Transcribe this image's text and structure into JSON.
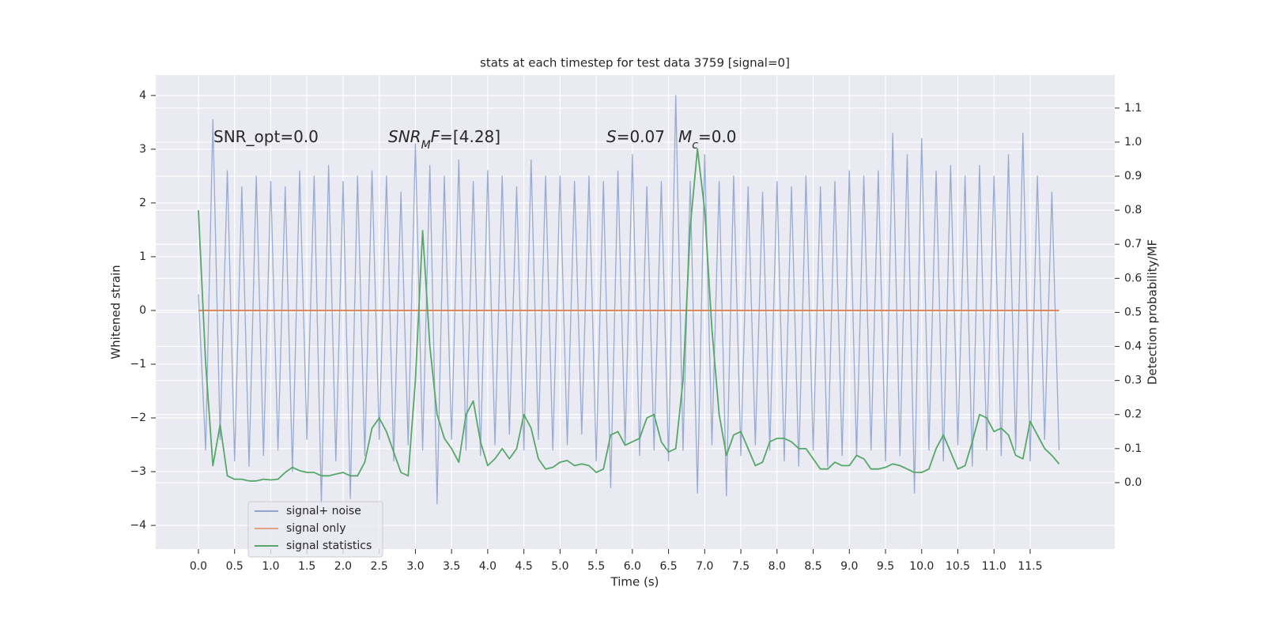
{
  "chart_data": {
    "type": "line",
    "title": "stats at each timestep for test data 3759 [signal=0]",
    "xlabel": "Time (s)",
    "ylabel": "Whitened strain",
    "y2label": "Detection probability/MF",
    "annotations": [
      [
        "SNR_opt=0.0"
      ],
      [
        "SNR",
        "M",
        "F",
        "=[4.28]"
      ],
      [
        "S",
        "=0.07"
      ],
      [
        "M",
        "c",
        "=0.0"
      ]
    ],
    "x": [
      0.0,
      0.1,
      0.2,
      0.3,
      0.4,
      0.5,
      0.6,
      0.7,
      0.8,
      0.9,
      1.0,
      1.1,
      1.2,
      1.3,
      1.4,
      1.5,
      1.6,
      1.7,
      1.8,
      1.9,
      2.0,
      2.1,
      2.2,
      2.3,
      2.4,
      2.5,
      2.6,
      2.7,
      2.8,
      2.9,
      3.0,
      3.1,
      3.2,
      3.3,
      3.4,
      3.5,
      3.6,
      3.7,
      3.8,
      3.9,
      4.0,
      4.1,
      4.2,
      4.3,
      4.4,
      4.5,
      4.6,
      4.7,
      4.8,
      4.9,
      5.0,
      5.1,
      5.2,
      5.3,
      5.4,
      5.5,
      5.6,
      5.7,
      5.8,
      5.9,
      6.0,
      6.1,
      6.2,
      6.3,
      6.4,
      6.5,
      6.6,
      6.7,
      6.8,
      6.9,
      7.0,
      7.1,
      7.2,
      7.3,
      7.4,
      7.5,
      7.6,
      7.7,
      7.8,
      7.9,
      8.0,
      8.1,
      8.2,
      8.3,
      8.4,
      8.5,
      8.6,
      8.7,
      8.8,
      8.9,
      9.0,
      9.1,
      9.2,
      9.3,
      9.4,
      9.5,
      9.6,
      9.7,
      9.8,
      9.9,
      10.0,
      10.1,
      10.2,
      10.3,
      10.4,
      10.5,
      10.6,
      10.7,
      10.8,
      10.9,
      11.0,
      11.1,
      11.2,
      11.3,
      11.4,
      11.5,
      11.6,
      11.7,
      11.8,
      11.9
    ],
    "series": [
      {
        "name": "signal+ noise",
        "color": "#8fa3cc",
        "values": [
          0.3,
          -2.6,
          3.55,
          -2.4,
          2.6,
          -2.8,
          2.3,
          -2.9,
          2.5,
          -2.7,
          2.4,
          -2.6,
          2.3,
          -3.0,
          2.6,
          -2.4,
          2.5,
          -3.6,
          2.7,
          -2.8,
          2.4,
          -3.5,
          2.5,
          -2.7,
          2.6,
          -2.4,
          2.5,
          -2.8,
          2.2,
          -2.5,
          3.1,
          -2.6,
          2.7,
          -3.6,
          2.5,
          -2.4,
          2.8,
          -2.6,
          2.4,
          -2.7,
          2.6,
          -2.5,
          2.5,
          -2.3,
          2.3,
          -2.6,
          2.8,
          -2.4,
          2.5,
          -2.6,
          2.5,
          -2.5,
          2.4,
          -2.3,
          2.5,
          -2.8,
          2.4,
          -3.3,
          2.6,
          -2.5,
          2.9,
          -2.7,
          2.3,
          -2.6,
          2.4,
          -2.8,
          4.0,
          -2.6,
          2.4,
          -3.4,
          2.9,
          -2.5,
          2.4,
          -3.45,
          2.5,
          -2.7,
          2.3,
          -2.5,
          2.2,
          -2.6,
          2.4,
          -2.8,
          2.3,
          -2.9,
          2.5,
          -2.6,
          2.3,
          -2.9,
          2.4,
          -2.7,
          2.6,
          -2.7,
          2.5,
          -2.6,
          2.6,
          -2.8,
          3.3,
          -2.7,
          2.9,
          -3.4,
          3.2,
          -2.6,
          2.6,
          -2.8,
          2.7,
          -2.5,
          2.5,
          -2.9,
          2.7,
          -2.6,
          2.5,
          -2.7,
          2.9,
          -2.6,
          3.3,
          -2.8,
          2.5,
          -2.4,
          2.2,
          -2.6
        ]
      },
      {
        "name": "signal only",
        "color": "#dd8452",
        "values": [
          0,
          0,
          0,
          0,
          0,
          0,
          0,
          0,
          0,
          0,
          0,
          0,
          0,
          0,
          0,
          0,
          0,
          0,
          0,
          0,
          0,
          0,
          0,
          0,
          0,
          0,
          0,
          0,
          0,
          0,
          0,
          0,
          0,
          0,
          0,
          0,
          0,
          0,
          0,
          0,
          0,
          0,
          0,
          0,
          0,
          0,
          0,
          0,
          0,
          0,
          0,
          0,
          0,
          0,
          0,
          0,
          0,
          0,
          0,
          0,
          0,
          0,
          0,
          0,
          0,
          0,
          0,
          0,
          0,
          0,
          0,
          0,
          0,
          0,
          0,
          0,
          0,
          0,
          0,
          0,
          0,
          0,
          0,
          0,
          0,
          0,
          0,
          0,
          0,
          0,
          0,
          0,
          0,
          0,
          0,
          0,
          0,
          0,
          0,
          0,
          0,
          0,
          0,
          0,
          0,
          0,
          0,
          0,
          0,
          0,
          0,
          0,
          0,
          0,
          0,
          0,
          0,
          0,
          0,
          0
        ]
      },
      {
        "name": "signal statistics",
        "color": "#55a868",
        "axis": "y2",
        "values": [
          0.8,
          0.35,
          0.05,
          0.17,
          0.02,
          0.01,
          0.01,
          0.005,
          0.005,
          0.01,
          0.008,
          0.01,
          0.03,
          0.045,
          0.035,
          0.03,
          0.03,
          0.02,
          0.02,
          0.025,
          0.03,
          0.02,
          0.02,
          0.06,
          0.16,
          0.19,
          0.15,
          0.09,
          0.03,
          0.02,
          0.3,
          0.74,
          0.4,
          0.2,
          0.13,
          0.1,
          0.06,
          0.2,
          0.24,
          0.12,
          0.05,
          0.07,
          0.1,
          0.07,
          0.1,
          0.2,
          0.16,
          0.07,
          0.04,
          0.045,
          0.06,
          0.065,
          0.05,
          0.055,
          0.05,
          0.03,
          0.04,
          0.14,
          0.15,
          0.11,
          0.12,
          0.13,
          0.19,
          0.2,
          0.12,
          0.09,
          0.1,
          0.3,
          0.75,
          0.98,
          0.8,
          0.45,
          0.2,
          0.08,
          0.14,
          0.15,
          0.1,
          0.05,
          0.06,
          0.12,
          0.13,
          0.13,
          0.12,
          0.1,
          0.1,
          0.07,
          0.04,
          0.04,
          0.06,
          0.05,
          0.05,
          0.08,
          0.07,
          0.04,
          0.04,
          0.045,
          0.055,
          0.05,
          0.04,
          0.03,
          0.03,
          0.04,
          0.1,
          0.14,
          0.09,
          0.04,
          0.05,
          0.12,
          0.2,
          0.19,
          0.15,
          0.16,
          0.14,
          0.08,
          0.07,
          0.18,
          0.14,
          0.1,
          0.08,
          0.055
        ]
      }
    ],
    "xlim": [
      -0.59,
      12.67
    ],
    "xticks": [
      {
        "value": 0,
        "label": "0.0"
      },
      0.5,
      {
        "value": 1,
        "label": "1.0"
      },
      1.5,
      {
        "value": 2,
        "label": "2.0"
      },
      2.5,
      {
        "value": 3,
        "label": "3.0"
      },
      3.5,
      {
        "value": 4,
        "label": "4.0"
      },
      4.5,
      {
        "value": 5,
        "label": "5.0"
      },
      5.5,
      {
        "value": 6,
        "label": "6.0"
      },
      6.5,
      {
        "value": 7,
        "label": "7.0"
      },
      7.5,
      {
        "value": 8,
        "label": "8.0"
      },
      8.5,
      {
        "value": 9,
        "label": "9.0"
      },
      9.5,
      {
        "value": 10,
        "label": "10.0"
      },
      10.5,
      {
        "value": 11,
        "label": "11.0"
      },
      11.5
    ],
    "ylim": [
      -4.44,
      4.38
    ],
    "yticks": [
      {
        "value": -4,
        "label": "−4"
      },
      {
        "value": -3,
        "label": "−3"
      },
      {
        "value": -2,
        "label": "−2"
      },
      {
        "value": -1,
        "label": "−1"
      },
      0,
      1,
      2,
      3,
      4
    ],
    "y2lim": [
      -0.195,
      1.197
    ],
    "y2ticks": [
      {
        "value": 0,
        "label": "0.0"
      },
      0.1,
      0.2,
      0.3,
      0.4,
      0.5,
      0.6,
      0.7,
      0.8,
      0.9,
      {
        "value": 1,
        "label": "1.0"
      },
      1.1
    ],
    "grid": true,
    "legend": "lower left"
  }
}
